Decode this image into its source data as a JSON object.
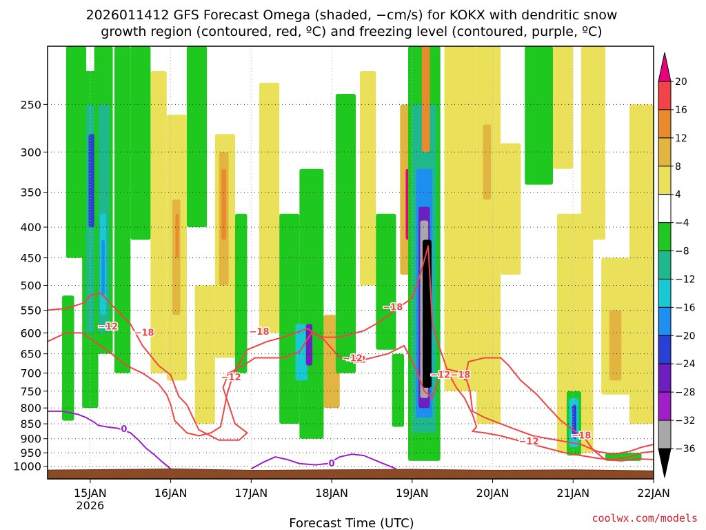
{
  "chart_data": {
    "type": "heatmap",
    "title_line1": "2026011412 GFS Forecast Omega (shaded, −cm/s) for KOKX with dendritic snow",
    "title_line2": "growth region (contoured, red, ºC) and freezing level (contoured, purple, ºC)",
    "xlabel": "Forecast Time (UTC)",
    "credit": "coolwx.com/models",
    "x_range_days": [
      -0.53,
      7.0
    ],
    "y_range_hpa": [
      1050,
      200
    ],
    "x_ticks": [
      {
        "day": 0,
        "label": "15JAN",
        "sublabel": "2026"
      },
      {
        "day": 1,
        "label": "16JAN"
      },
      {
        "day": 2,
        "label": "17JAN"
      },
      {
        "day": 3,
        "label": "18JAN"
      },
      {
        "day": 4,
        "label": "19JAN"
      },
      {
        "day": 5,
        "label": "20JAN"
      },
      {
        "day": 6,
        "label": "21JAN"
      },
      {
        "day": 7,
        "label": "22JAN"
      }
    ],
    "y_ticks": [
      {
        "p": 250,
        "label": "250"
      },
      {
        "p": 300,
        "label": "300"
      },
      {
        "p": 350,
        "label": "350"
      },
      {
        "p": 400,
        "label": "400"
      },
      {
        "p": 450,
        "label": "450"
      },
      {
        "p": 500,
        "label": "500"
      },
      {
        "p": 550,
        "label": "550"
      },
      {
        "p": 600,
        "label": "600"
      },
      {
        "p": 650,
        "label": "650"
      },
      {
        "p": 700,
        "label": "700"
      },
      {
        "p": 750,
        "label": "750"
      },
      {
        "p": 800,
        "label": "800"
      },
      {
        "p": 850,
        "label": "850"
      },
      {
        "p": 900,
        "label": "900"
      },
      {
        "p": 950,
        "label": "950"
      },
      {
        "p": 1000,
        "label": "1000"
      }
    ],
    "colorbar": {
      "bins": [
        {
          "lo": 20,
          "hi": 24,
          "color": "#e8007d"
        },
        {
          "lo": 16,
          "hi": 20,
          "color": "#f2434a"
        },
        {
          "lo": 12,
          "hi": 16,
          "color": "#ea8a2e"
        },
        {
          "lo": 8,
          "hi": 12,
          "color": "#e2b440"
        },
        {
          "lo": 4,
          "hi": 8,
          "color": "#ebe05a"
        },
        {
          "lo": -4,
          "hi": 4,
          "color": "#ffffff"
        },
        {
          "lo": -8,
          "hi": -4,
          "color": "#1fc81f"
        },
        {
          "lo": -12,
          "hi": -8,
          "color": "#1fb88a"
        },
        {
          "lo": -16,
          "hi": -12,
          "color": "#18c8d2"
        },
        {
          "lo": -20,
          "hi": -16,
          "color": "#1e8ef0"
        },
        {
          "lo": -24,
          "hi": -20,
          "color": "#2a3fd6"
        },
        {
          "lo": -28,
          "hi": -24,
          "color": "#6d1fc0"
        },
        {
          "lo": -32,
          "hi": -28,
          "color": "#a020c8"
        },
        {
          "lo": -36,
          "hi": -32,
          "color": "#a8a8a8"
        },
        {
          "lo": -40,
          "hi": -36,
          "color": "#000000"
        }
      ],
      "tick_labels": [
        "20",
        "16",
        "12",
        "8",
        "4",
        "−4",
        "−8",
        "−12",
        "−16",
        "−20",
        "−24",
        "−28",
        "−32",
        "−36"
      ]
    },
    "omega_cells": [
      {
        "t0": -0.3,
        "t1": -0.05,
        "p0": 200,
        "p1": 450,
        "v": -6
      },
      {
        "t0": -0.35,
        "t1": -0.2,
        "p0": 520,
        "p1": 840,
        "v": -6
      },
      {
        "t0": -0.1,
        "t1": 0.1,
        "p0": 220,
        "p1": 800,
        "v": -6
      },
      {
        "t0": -0.05,
        "t1": 0.08,
        "p0": 250,
        "p1": 600,
        "v": -10
      },
      {
        "t0": -0.02,
        "t1": 0.06,
        "p0": 280,
        "p1": 400,
        "v": -22
      },
      {
        "t0": 0.05,
        "t1": 0.28,
        "p0": 200,
        "p1": 650,
        "v": -6
      },
      {
        "t0": 0.1,
        "t1": 0.24,
        "p0": 250,
        "p1": 600,
        "v": -10
      },
      {
        "t0": 0.12,
        "t1": 0.2,
        "p0": 380,
        "p1": 560,
        "v": -14
      },
      {
        "t0": 0.14,
        "t1": 0.18,
        "p0": 420,
        "p1": 520,
        "v": -18
      },
      {
        "t0": 0.3,
        "t1": 0.5,
        "p0": 200,
        "p1": 700,
        "v": -6
      },
      {
        "t0": 0.5,
        "t1": 0.75,
        "p0": 200,
        "p1": 420,
        "v": -6
      },
      {
        "t0": 0.75,
        "t1": 0.95,
        "p0": 220,
        "p1": 700,
        "v": 6
      },
      {
        "t0": 0.95,
        "t1": 1.2,
        "p0": 260,
        "p1": 720,
        "v": 6
      },
      {
        "t0": 1.02,
        "t1": 1.12,
        "p0": 360,
        "p1": 560,
        "v": 10
      },
      {
        "t0": 1.06,
        "t1": 1.1,
        "p0": 380,
        "p1": 450,
        "v": 14
      },
      {
        "t0": 1.2,
        "t1": 1.45,
        "p0": 200,
        "p1": 400,
        "v": -6
      },
      {
        "t0": 1.3,
        "t1": 1.55,
        "p0": 500,
        "p1": 850,
        "v": 6
      },
      {
        "t0": 1.55,
        "t1": 1.8,
        "p0": 280,
        "p1": 660,
        "v": 6
      },
      {
        "t0": 1.6,
        "t1": 1.72,
        "p0": 300,
        "p1": 500,
        "v": 10
      },
      {
        "t0": 1.63,
        "t1": 1.69,
        "p0": 320,
        "p1": 420,
        "v": 14
      },
      {
        "t0": 1.8,
        "t1": 1.95,
        "p0": 380,
        "p1": 700,
        "v": -6
      },
      {
        "t0": 2.1,
        "t1": 2.35,
        "p0": 230,
        "p1": 600,
        "v": 6
      },
      {
        "t0": 2.35,
        "t1": 2.6,
        "p0": 380,
        "p1": 850,
        "v": -6
      },
      {
        "t0": 2.6,
        "t1": 2.9,
        "p0": 320,
        "p1": 900,
        "v": -6
      },
      {
        "t0": 2.55,
        "t1": 2.7,
        "p0": 580,
        "p1": 720,
        "v": -14
      },
      {
        "t0": 2.68,
        "t1": 2.76,
        "p0": 580,
        "p1": 680,
        "v": -26
      },
      {
        "t0": 2.9,
        "t1": 3.1,
        "p0": 560,
        "p1": 800,
        "v": 8
      },
      {
        "t0": 3.05,
        "t1": 3.3,
        "p0": 240,
        "p1": 700,
        "v": -6
      },
      {
        "t0": 3.35,
        "t1": 3.55,
        "p0": 220,
        "p1": 500,
        "v": 6
      },
      {
        "t0": 3.55,
        "t1": 3.8,
        "p0": 380,
        "p1": 640,
        "v": -6
      },
      {
        "t0": 3.75,
        "t1": 3.9,
        "p0": 650,
        "p1": 860,
        "v": -6
      },
      {
        "t0": 3.85,
        "t1": 4.05,
        "p0": 250,
        "p1": 480,
        "v": 10
      },
      {
        "t0": 3.92,
        "t1": 4.0,
        "p0": 320,
        "p1": 420,
        "v": 22
      },
      {
        "t0": 3.95,
        "t1": 4.35,
        "p0": 200,
        "p1": 980,
        "v": -6
      },
      {
        "t0": 4.0,
        "t1": 4.3,
        "p0": 250,
        "p1": 880,
        "v": -12
      },
      {
        "t0": 4.05,
        "t1": 4.25,
        "p0": 320,
        "p1": 830,
        "v": -20
      },
      {
        "t0": 4.08,
        "t1": 4.22,
        "p0": 370,
        "p1": 800,
        "v": -28
      },
      {
        "t0": 4.1,
        "t1": 4.2,
        "p0": 390,
        "p1": 770,
        "v": -34
      },
      {
        "t0": 4.13,
        "t1": 4.24,
        "p0": 420,
        "p1": 740,
        "v": -38
      },
      {
        "t0": 4.12,
        "t1": 4.22,
        "p0": 200,
        "p1": 300,
        "v": 12
      },
      {
        "t0": 4.4,
        "t1": 4.8,
        "p0": 200,
        "p1": 750,
        "v": 6
      },
      {
        "t0": 4.8,
        "t1": 5.1,
        "p0": 200,
        "p1": 850,
        "v": 6
      },
      {
        "t0": 4.88,
        "t1": 4.98,
        "p0": 270,
        "p1": 360,
        "v": 10
      },
      {
        "t0": 5.1,
        "t1": 5.35,
        "p0": 290,
        "p1": 480,
        "v": 6
      },
      {
        "t0": 5.4,
        "t1": 5.75,
        "p0": 200,
        "p1": 340,
        "v": -6
      },
      {
        "t0": 5.75,
        "t1": 6.0,
        "p0": 200,
        "p1": 320,
        "v": 6
      },
      {
        "t0": 5.8,
        "t1": 6.25,
        "p0": 380,
        "p1": 950,
        "v": 6
      },
      {
        "t0": 5.92,
        "t1": 6.1,
        "p0": 750,
        "p1": 960,
        "v": -6
      },
      {
        "t0": 5.95,
        "t1": 6.07,
        "p0": 770,
        "p1": 930,
        "v": -14
      },
      {
        "t0": 5.99,
        "t1": 6.04,
        "p0": 790,
        "p1": 900,
        "v": -22
      },
      {
        "t0": 6.1,
        "t1": 6.4,
        "p0": 200,
        "p1": 420,
        "v": 6
      },
      {
        "t0": 6.35,
        "t1": 6.7,
        "p0": 450,
        "p1": 760,
        "v": 6
      },
      {
        "t0": 6.45,
        "t1": 6.6,
        "p0": 550,
        "p1": 720,
        "v": 10
      },
      {
        "t0": 6.7,
        "t1": 7.0,
        "p0": 250,
        "p1": 850,
        "v": 6
      },
      {
        "t0": 6.4,
        "t1": 6.85,
        "p0": 950,
        "p1": 980,
        "v": -6
      }
    ],
    "dgz_contours": [
      {
        "label": "−18",
        "label_at": [
          3.76,
          544
        ],
        "points": [
          [
            -0.53,
            550
          ],
          [
            -0.3,
            546
          ],
          [
            -0.08,
            535
          ],
          [
            0.0,
            520
          ],
          [
            0.13,
            515
          ],
          [
            0.25,
            536
          ],
          [
            0.5,
            580
          ],
          [
            0.65,
            630
          ],
          [
            0.85,
            680
          ],
          [
            1.0,
            705
          ],
          [
            1.1,
            765
          ],
          [
            1.2,
            790
          ],
          [
            1.35,
            870
          ],
          [
            1.6,
            905
          ],
          [
            1.85,
            905
          ],
          [
            1.95,
            880
          ],
          [
            1.8,
            850
          ],
          [
            1.65,
            740
          ],
          [
            1.72,
            700
          ],
          [
            1.9,
            680
          ],
          [
            2.05,
            660
          ],
          [
            2.4,
            660
          ],
          [
            2.6,
            645
          ],
          [
            2.75,
            600
          ],
          [
            2.9,
            610
          ],
          [
            3.1,
            610
          ],
          [
            3.4,
            595
          ],
          [
            3.6,
            575
          ],
          [
            3.8,
            548
          ],
          [
            4.0,
            525
          ],
          [
            4.1,
            480
          ],
          [
            4.2,
            430
          ],
          [
            4.25,
            580
          ],
          [
            4.35,
            640
          ],
          [
            4.45,
            700
          ],
          [
            4.55,
            740
          ],
          [
            4.65,
            770
          ],
          [
            4.75,
            820
          ],
          [
            4.8,
            860
          ],
          [
            4.75,
            875
          ],
          [
            4.9,
            880
          ],
          [
            5.1,
            890
          ],
          [
            5.3,
            905
          ],
          [
            5.5,
            920
          ],
          [
            5.7,
            935
          ],
          [
            5.9,
            950
          ],
          [
            6.1,
            960
          ],
          [
            6.3,
            970
          ],
          [
            6.5,
            975
          ],
          [
            6.7,
            965
          ],
          [
            6.85,
            950
          ],
          [
            7.0,
            945
          ]
        ]
      },
      {
        "label": "−12",
        "label_at": [
          3.3,
          665
        ],
        "points": [
          [
            -0.53,
            620
          ],
          [
            -0.3,
            600
          ],
          [
            -0.1,
            600
          ],
          [
            0.05,
            620
          ],
          [
            0.2,
            640
          ],
          [
            0.45,
            680
          ],
          [
            0.65,
            700
          ],
          [
            0.85,
            730
          ],
          [
            0.95,
            760
          ],
          [
            1.0,
            790
          ],
          [
            1.05,
            840
          ],
          [
            1.2,
            880
          ],
          [
            1.35,
            890
          ],
          [
            1.5,
            880
          ],
          [
            1.62,
            860
          ],
          [
            1.7,
            760
          ],
          [
            1.78,
            700
          ],
          [
            1.95,
            640
          ],
          [
            2.2,
            620
          ],
          [
            2.4,
            610
          ],
          [
            2.7,
            590
          ],
          [
            2.9,
            615
          ],
          [
            3.1,
            660
          ],
          [
            3.4,
            665
          ],
          [
            3.7,
            650
          ],
          [
            3.9,
            630
          ],
          [
            4.05,
            690
          ],
          [
            4.15,
            750
          ],
          [
            4.25,
            770
          ],
          [
            4.35,
            700
          ],
          [
            4.45,
            690
          ],
          [
            4.65,
            700
          ],
          [
            4.72,
            750
          ],
          [
            4.75,
            810
          ],
          [
            4.9,
            830
          ],
          [
            5.1,
            850
          ],
          [
            5.3,
            870
          ],
          [
            5.5,
            890
          ],
          [
            5.7,
            900
          ],
          [
            5.9,
            910
          ],
          [
            6.1,
            920
          ],
          [
            6.3,
            945
          ],
          [
            6.5,
            955
          ],
          [
            6.7,
            945
          ],
          [
            6.85,
            930
          ],
          [
            7.0,
            920
          ]
        ]
      },
      {
        "label": "−18",
        "label_at": [
          4.6,
          705
        ],
        "points": [
          [
            4.65,
            720
          ],
          [
            4.7,
            670
          ],
          [
            4.9,
            660
          ],
          [
            5.1,
            660
          ],
          [
            5.2,
            680
          ],
          [
            5.35,
            720
          ],
          [
            5.55,
            760
          ],
          [
            5.7,
            800
          ],
          [
            5.85,
            840
          ],
          [
            6.0,
            870
          ],
          [
            6.15,
            900
          ],
          [
            6.25,
            940
          ],
          [
            6.4,
            975
          ],
          [
            6.6,
            980
          ],
          [
            6.8,
            972
          ],
          [
            7.0,
            975
          ]
        ]
      }
    ],
    "dgz_extra_labels": [
      {
        "label": "−12",
        "at": [
          0.22,
          586
        ]
      },
      {
        "label": "−18",
        "at": [
          0.67,
          600
        ]
      },
      {
        "label": "−12",
        "at": [
          1.75,
          712
        ]
      },
      {
        "label": "−18",
        "at": [
          2.1,
          598
        ]
      },
      {
        "label": "−12",
        "at": [
          3.26,
          662
        ]
      },
      {
        "label": "−12",
        "at": [
          4.35,
          705
        ]
      },
      {
        "label": "−12",
        "at": [
          5.45,
          910
        ]
      },
      {
        "label": "−18",
        "at": [
          6.1,
          890
        ]
      }
    ],
    "freezing_contours": [
      {
        "label": "0",
        "label_at": [
          0.42,
          868
        ],
        "points": [
          [
            -0.53,
            810
          ],
          [
            -0.35,
            810
          ],
          [
            -0.15,
            820
          ],
          [
            -0.05,
            830
          ],
          [
            0.05,
            845
          ],
          [
            0.1,
            855
          ],
          [
            0.2,
            860
          ],
          [
            0.35,
            865
          ],
          [
            0.5,
            880
          ],
          [
            0.6,
            905
          ],
          [
            0.7,
            935
          ],
          [
            0.8,
            958
          ],
          [
            0.9,
            985
          ],
          [
            1.0,
            1010
          ]
        ]
      },
      {
        "label": "0",
        "label_at": [
          3.0,
          990
        ],
        "points": [
          [
            2.0,
            1010
          ],
          [
            2.15,
            985
          ],
          [
            2.3,
            965
          ],
          [
            2.45,
            975
          ],
          [
            2.6,
            990
          ],
          [
            2.8,
            995
          ],
          [
            2.95,
            990
          ],
          [
            3.1,
            965
          ],
          [
            3.25,
            955
          ],
          [
            3.4,
            960
          ],
          [
            3.6,
            985
          ],
          [
            3.8,
            1010
          ]
        ]
      }
    ],
    "terrain_surface_hpa": [
      [
        -0.53,
        1015
      ],
      [
        0.5,
        1012
      ],
      [
        1.0,
        1010
      ],
      [
        2.0,
        1016
      ],
      [
        3.0,
        1014
      ],
      [
        4.0,
        1012
      ],
      [
        5.0,
        1016
      ],
      [
        6.0,
        1014
      ],
      [
        7.0,
        1018
      ]
    ]
  }
}
